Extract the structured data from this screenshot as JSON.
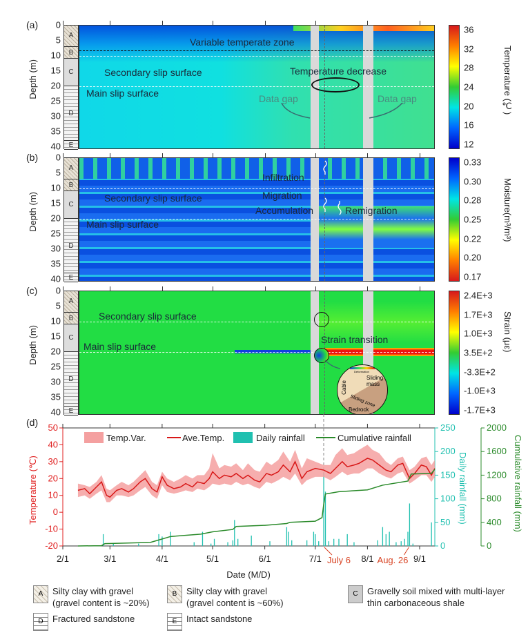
{
  "panels": {
    "a": {
      "label": "(a)",
      "annotations": {
        "zone": "Variable temperate zone",
        "secondary": "Secondary slip surface",
        "temp_decrease": "Temperature decrease",
        "main": "Main slip surface",
        "gap1": "Data gap",
        "gap2": "Data gap"
      },
      "colorbar": {
        "title": "Temperature (℃)",
        "ticks": [
          "36",
          "32",
          "28",
          "24",
          "20",
          "16",
          "12"
        ],
        "colors": [
          "#d7191c",
          "#ff7f00",
          "#ffff00",
          "#33cc33",
          "#00e5e5",
          "#0066ff",
          "#0000cc"
        ]
      }
    },
    "b": {
      "label": "(b)",
      "annotations": {
        "infiltration": "Infiltration",
        "migration": "Migration",
        "accumulation": "Accumulation",
        "remigration": "Remigration",
        "secondary": "Secondary slip surface",
        "main": "Main slip surface"
      },
      "colorbar": {
        "title": "Moisture(m³/m³)",
        "ticks": [
          "0.33",
          "0.30",
          "0.28",
          "0.25",
          "0.22",
          "0.20",
          "0.17"
        ],
        "colors": [
          "#0000cc",
          "#0066ff",
          "#00e5e5",
          "#33cc33",
          "#ffff00",
          "#ff7f00",
          "#d7191c"
        ]
      }
    },
    "c": {
      "label": "(c)",
      "annotations": {
        "secondary": "Secondary slip surface",
        "main": "Main slip surface",
        "transition": "Strain transition",
        "inset_deformation": "Deformation",
        "inset_sliding_mass": "Sliding mass",
        "inset_cable": "Cable",
        "inset_sliding_zone": "Sliding zone",
        "inset_bedrock": "Bedrock"
      },
      "colorbar": {
        "title": "Strain (με)",
        "ticks": [
          "2.4E+3",
          "1.7E+3",
          "1.0E+3",
          "3.5E+2",
          "-3.3E+2",
          "-1.0E+3",
          "-1.7E+3"
        ],
        "colors": [
          "#d7191c",
          "#ff7f00",
          "#ffff00",
          "#33cc33",
          "#00e5e5",
          "#0066ff",
          "#0000cc"
        ]
      }
    }
  },
  "depth_axis": {
    "label": "Depth (m)",
    "ticks": [
      "0",
      "5",
      "10",
      "15",
      "20",
      "25",
      "30",
      "35",
      "40"
    ]
  },
  "layers": [
    "A",
    "B",
    "C",
    "D",
    "E"
  ],
  "chart_data": {
    "type": "line",
    "label": "(d)",
    "xlabel": "Date (M/D)",
    "xticks": [
      "2/1",
      "3/1",
      "4/1",
      "5/1",
      "6/1",
      "7/1",
      "8/1",
      "9/1"
    ],
    "events": [
      {
        "date": "7/6",
        "label": "July 6"
      },
      {
        "date": "8/26",
        "label": "Aug. 26"
      }
    ],
    "axes": {
      "temperature": {
        "label": "Temperature (℃)",
        "ylim": [
          -20,
          50
        ],
        "ticks": [
          "50",
          "40",
          "30",
          "20",
          "10",
          "0",
          "-10",
          "-20"
        ],
        "color": "#e02020"
      },
      "daily": {
        "label": "Daily rainfall (mm)",
        "ylim": [
          0,
          250
        ],
        "ticks": [
          "250",
          "200",
          "150",
          "100",
          "50",
          "0"
        ],
        "color": "#20c0b0"
      },
      "cumulative": {
        "label": "Cumulative rainfall (mm)",
        "ylim": [
          0,
          2000
        ],
        "ticks": [
          "2000",
          "1600",
          "1200",
          "800",
          "400",
          "0"
        ],
        "color": "#2a8a2a"
      }
    },
    "legend": {
      "placement": "top",
      "items": [
        "Temp.Var.",
        "Ave.Temp.",
        "Daily rainfall",
        "Cumulative rainfall"
      ]
    },
    "series": [
      {
        "name": "Ave.Temp.",
        "dates": [
          "2/10",
          "2/14",
          "2/17",
          "2/21",
          "2/24",
          "2/27",
          "3/1",
          "3/5",
          "3/8",
          "3/12",
          "3/15",
          "3/19",
          "3/22",
          "3/26",
          "3/29",
          "4/1",
          "4/4",
          "4/8",
          "4/12",
          "4/15",
          "4/19",
          "4/22",
          "4/26",
          "4/29",
          "5/1",
          "5/5",
          "5/8",
          "5/12",
          "5/15",
          "5/19",
          "5/22",
          "5/26",
          "5/29",
          "6/2",
          "6/5",
          "6/9",
          "6/12",
          "6/16",
          "6/19",
          "6/23",
          "6/26",
          "7/1",
          "7/6",
          "7/10",
          "7/13",
          "7/17",
          "7/20",
          "7/24",
          "7/27",
          "8/1",
          "8/4",
          "8/8",
          "8/12",
          "8/15",
          "8/19",
          "8/22",
          "8/26",
          "8/29",
          "9/2",
          "9/5",
          "9/8",
          "9/10"
        ],
        "values": [
          13,
          14,
          11,
          15,
          18,
          10,
          9,
          13,
          14,
          12,
          14,
          18,
          20,
          14,
          12,
          21,
          16,
          14,
          15,
          17,
          15,
          18,
          17,
          20,
          24,
          20,
          22,
          21,
          23,
          20,
          22,
          19,
          18,
          23,
          22,
          24,
          28,
          24,
          30,
          20,
          24,
          26,
          25,
          23,
          26,
          30,
          27,
          28,
          29,
          32,
          31,
          28,
          25,
          24,
          28,
          29,
          20,
          23,
          28,
          27,
          22,
          26
        ]
      },
      {
        "name": "Temp.Var.",
        "upper": [
          17,
          16,
          15,
          18,
          22,
          14,
          13,
          16,
          18,
          16,
          18,
          22,
          25,
          18,
          16,
          24,
          20,
          18,
          20,
          22,
          20,
          22,
          22,
          26,
          35,
          26,
          28,
          27,
          29,
          25,
          29,
          25,
          24,
          30,
          28,
          31,
          36,
          30,
          37,
          26,
          32,
          30,
          28,
          28,
          34,
          38,
          34,
          35,
          37,
          40,
          37,
          35,
          30,
          28,
          32,
          33,
          25,
          27,
          32,
          33,
          28,
          31
        ],
        "lower": [
          9,
          10,
          8,
          11,
          13,
          6,
          6,
          10,
          10,
          9,
          10,
          13,
          15,
          10,
          8,
          16,
          12,
          11,
          12,
          13,
          12,
          14,
          13,
          15,
          17,
          16,
          17,
          16,
          18,
          16,
          17,
          15,
          14,
          18,
          17,
          19,
          21,
          19,
          23,
          16,
          19,
          21,
          21,
          19,
          21,
          24,
          22,
          23,
          23,
          26,
          26,
          23,
          21,
          20,
          23,
          24,
          17,
          19,
          22,
          22,
          18,
          21
        ]
      },
      {
        "name": "Cumulative rainfall",
        "dates": [
          "2/10",
          "2/24",
          "2/26",
          "3/25",
          "3/31",
          "4/6",
          "4/24",
          "5/1",
          "5/13",
          "5/15",
          "6/1",
          "6/14",
          "6/16",
          "7/1",
          "7/5",
          "7/6",
          "7/7",
          "7/15",
          "8/1",
          "8/10",
          "8/25",
          "8/27",
          "9/8",
          "9/10"
        ],
        "values": [
          0,
          5,
          40,
          60,
          110,
          160,
          200,
          240,
          280,
          330,
          350,
          380,
          400,
          420,
          480,
          700,
          880,
          920,
          950,
          1030,
          1100,
          1220,
          1230,
          1300
        ]
      },
      {
        "name": "Daily rainfall",
        "dates": [
          "2/25",
          "3/3",
          "3/18",
          "3/30",
          "4/1",
          "4/6",
          "4/20",
          "4/25",
          "4/30",
          "5/2",
          "5/10",
          "5/13",
          "5/14",
          "5/16",
          "5/24",
          "6/4",
          "6/14",
          "6/15",
          "6/17",
          "6/26",
          "6/30",
          "7/1",
          "7/3",
          "7/6",
          "7/7",
          "7/9",
          "7/12",
          "7/15",
          "7/20",
          "7/24",
          "8/7",
          "8/10",
          "8/12",
          "8/14",
          "8/18",
          "8/21",
          "8/23",
          "8/25",
          "8/26",
          "8/28",
          "9/8"
        ],
        "values": [
          25,
          5,
          5,
          25,
          20,
          30,
          8,
          30,
          5,
          15,
          8,
          12,
          55,
          15,
          22,
          10,
          40,
          30,
          12,
          12,
          30,
          25,
          10,
          155,
          115,
          10,
          15,
          15,
          25,
          8,
          12,
          40,
          25,
          30,
          8,
          10,
          15,
          30,
          90,
          5,
          50
        ]
      }
    ]
  },
  "legend_bottom": [
    {
      "code": "A",
      "text": "Silty clay with gravel (gravel content is ~20%)",
      "lines": [
        "Silty clay with gravel",
        "(gravel content is ~20%)"
      ]
    },
    {
      "code": "B",
      "text": "Silty clay with gravel (gravel content is ~60%)",
      "lines": [
        "Silty clay with gravel",
        "(gravel content is ~60%)"
      ]
    },
    {
      "code": "C",
      "text": "Gravelly soil mixed with multi-layer thin carbonaceous shale",
      "lines": [
        "Gravelly soil mixed with multi-layer",
        " thin carbonaceous shale"
      ]
    },
    {
      "code": "D",
      "text": "Fractured sandstone",
      "lines": [
        "Fractured sandstone"
      ]
    },
    {
      "code": "E",
      "text": "Intact sandstone",
      "lines": [
        "Intact sandstone"
      ]
    }
  ]
}
